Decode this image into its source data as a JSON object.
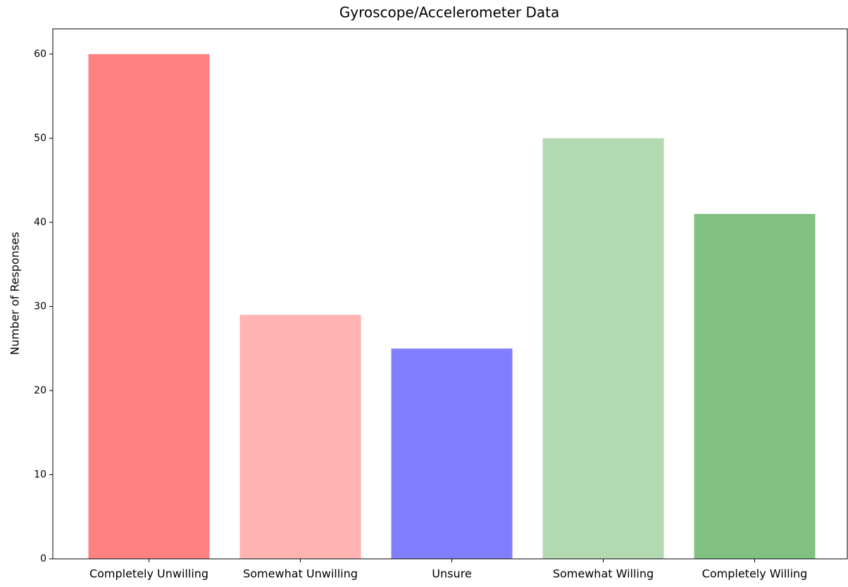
{
  "chart_data": {
    "type": "bar",
    "title": "Gyroscope/Accelerometer Data",
    "ylabel": "Number of Responses",
    "categories": [
      "Completely Unwilling",
      "Somewhat Unwilling",
      "Unsure",
      "Somewhat Willing",
      "Completely Willing"
    ],
    "values": [
      60,
      29,
      25,
      50,
      41
    ],
    "colors": [
      "#ff8080",
      "#ffb3b3",
      "#8080ff",
      "#b2d9b2",
      "#80c080"
    ],
    "ylim": [
      0,
      63
    ],
    "yticks": [
      0,
      10,
      20,
      30,
      40,
      50,
      60
    ],
    "grid": false
  }
}
